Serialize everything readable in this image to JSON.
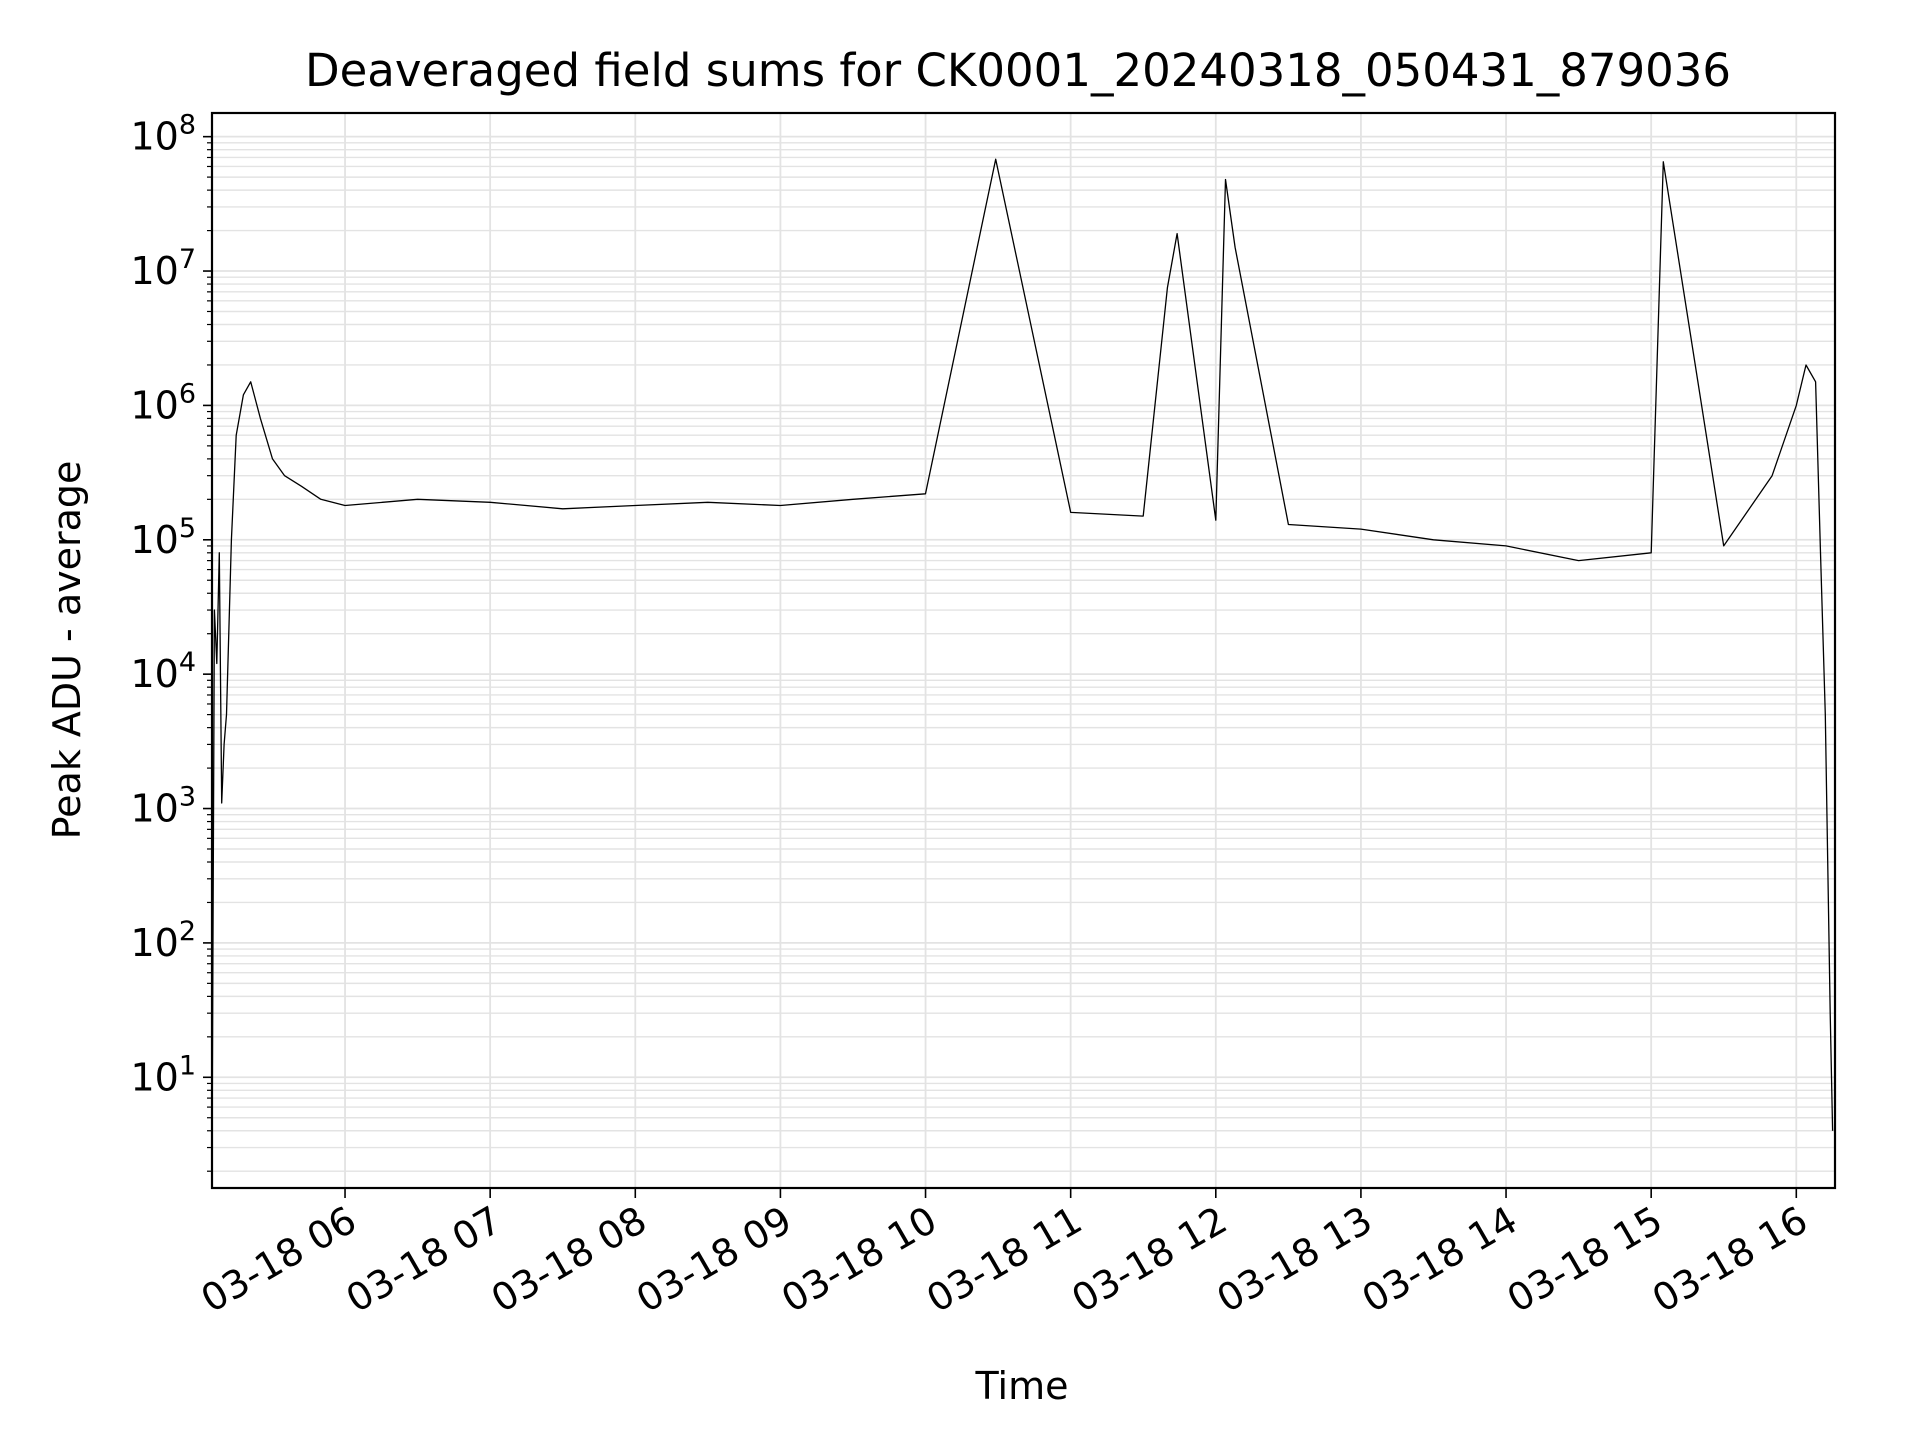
{
  "chart_data": {
    "type": "line",
    "title": "Deaveraged field sums for CK0001_20240318_050431_879036",
    "xlabel": "Time",
    "ylabel": "Peak ADU - average",
    "yscale": "log",
    "grid": true,
    "legend": "none",
    "line_color": "#000000",
    "grid_color": "#e3e3e3",
    "xlim": [
      "03-18 05:05",
      "03-18 16:16"
    ],
    "ylim": [
      1.5,
      150000000
    ],
    "x_ticks": [
      "03-18 06",
      "03-18 07",
      "03-18 08",
      "03-18 09",
      "03-18 10",
      "03-18 11",
      "03-18 12",
      "03-18 13",
      "03-18 14",
      "03-18 15",
      "03-18 16"
    ],
    "y_ticks": [
      {
        "base": "10",
        "exp": "1",
        "value": 10
      },
      {
        "base": "10",
        "exp": "2",
        "value": 100
      },
      {
        "base": "10",
        "exp": "3",
        "value": 1000
      },
      {
        "base": "10",
        "exp": "4",
        "value": 10000
      },
      {
        "base": "10",
        "exp": "5",
        "value": 100000
      },
      {
        "base": "10",
        "exp": "6",
        "value": 1000000
      },
      {
        "base": "10",
        "exp": "7",
        "value": 10000000
      },
      {
        "base": "10",
        "exp": "8",
        "value": 100000000
      }
    ],
    "series": [
      {
        "x": [
          "03-18 05:05",
          "03-18 05:06",
          "03-18 05:07",
          "03-18 05:08",
          "03-18 05:09",
          "03-18 05:10",
          "03-18 05:11",
          "03-18 05:13",
          "03-18 05:15",
          "03-18 05:18",
          "03-18 05:21",
          "03-18 05:25",
          "03-18 05:30",
          "03-18 05:35",
          "03-18 05:42",
          "03-18 05:50",
          "03-18 06:00",
          "03-18 06:30",
          "03-18 07:00",
          "03-18 07:30",
          "03-18 08:00",
          "03-18 08:30",
          "03-18 09:00",
          "03-18 09:30",
          "03-18 10:00",
          "03-18 10:29",
          "03-18 11:00",
          "03-18 11:30",
          "03-18 11:40",
          "03-18 11:44",
          "03-18 12:00",
          "03-18 12:04",
          "03-18 12:08",
          "03-18 12:30",
          "03-18 13:00",
          "03-18 13:30",
          "03-18 14:00",
          "03-18 14:30",
          "03-18 15:00",
          "03-18 15:05",
          "03-18 15:30",
          "03-18 15:50",
          "03-18 16:00",
          "03-18 16:04",
          "03-18 16:08",
          "03-18 16:10",
          "03-18 16:12",
          "03-18 16:14",
          "03-18 16:15"
        ],
        "y": [
          2,
          30000,
          12000,
          80000,
          1100,
          3000,
          5000,
          100000,
          600000,
          1200000,
          1500000,
          800000,
          400000,
          300000,
          250000,
          200000,
          180000,
          200000,
          190000,
          170000,
          180000,
          190000,
          180000,
          200000,
          220000,
          68000000,
          160000,
          150000,
          7500000,
          19000000,
          140000,
          48000000,
          15000000,
          130000,
          120000,
          100000,
          90000,
          70000,
          80000,
          65000000,
          90000,
          300000,
          1000000,
          2000000,
          1500000,
          80000,
          5000,
          30,
          4
        ]
      }
    ]
  }
}
